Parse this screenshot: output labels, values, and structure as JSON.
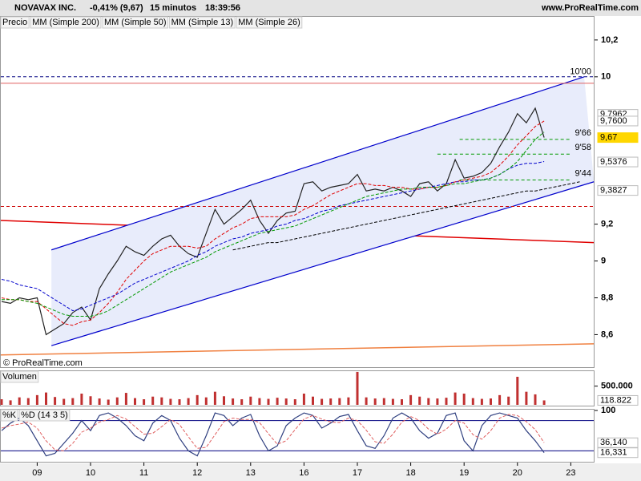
{
  "chart_data": [
    {
      "type": "line",
      "title": "NOVAVAX INC.",
      "subtitle": "-0,41% (9,67)",
      "interval": "15 minutos",
      "time": "18:39:56",
      "source": "www.ProRealTime.com",
      "copyright": "© ProRealTime.com",
      "categories": [
        null,
        null,
        null,
        null,
        "09",
        null,
        null,
        null,
        null,
        null,
        "10",
        null,
        null,
        null,
        null,
        null,
        "11",
        null,
        null,
        null,
        null,
        null,
        "12",
        null,
        null,
        null,
        null,
        null,
        "13",
        null,
        null,
        null,
        null,
        null,
        "16",
        null,
        null,
        null,
        null,
        null,
        "17",
        null,
        null,
        null,
        null,
        null,
        "18",
        null,
        null,
        null,
        null,
        null,
        "19",
        null,
        null,
        null,
        null,
        null,
        "20",
        null,
        null,
        null,
        null,
        null,
        "23",
        null
      ],
      "series": [
        {
          "name": "Precio",
          "color": "#222222",
          "values": [
            8.78,
            8.77,
            8.8,
            8.79,
            8.8,
            8.6,
            8.63,
            8.66,
            8.72,
            8.75,
            8.68,
            8.85,
            8.93,
            9.0,
            9.08,
            9.05,
            9.03,
            9.08,
            9.12,
            9.14,
            9.08,
            9.04,
            9.02,
            9.15,
            9.28,
            9.2,
            9.24,
            9.28,
            9.33,
            9.22,
            9.15,
            9.22,
            9.26,
            9.27,
            9.42,
            9.43,
            9.38,
            9.4,
            9.41,
            9.42,
            9.47,
            9.38,
            9.39,
            9.38,
            9.4,
            9.38,
            9.35,
            9.42,
            9.43,
            9.38,
            9.42,
            9.55,
            9.45,
            9.46,
            9.48,
            9.53,
            9.62,
            9.7,
            9.8,
            9.75,
            9.83,
            9.67,
            null,
            null,
            null,
            null
          ]
        },
        {
          "name": "MM (Simple 200)",
          "color": "#000000",
          "dash": true,
          "values": [
            null,
            null,
            null,
            null,
            null,
            null,
            null,
            null,
            null,
            null,
            null,
            null,
            null,
            null,
            null,
            null,
            null,
            null,
            null,
            null,
            null,
            null,
            null,
            null,
            null,
            null,
            9.06,
            9.07,
            9.08,
            9.09,
            9.1,
            9.1,
            9.11,
            9.12,
            9.13,
            9.14,
            9.15,
            9.16,
            9.17,
            9.18,
            9.19,
            9.2,
            9.21,
            9.22,
            9.23,
            9.24,
            9.25,
            9.26,
            9.27,
            9.28,
            9.29,
            9.3,
            9.31,
            9.32,
            9.33,
            9.34,
            9.35,
            9.36,
            9.37,
            9.38,
            9.38,
            9.39,
            9.4,
            9.41,
            9.42,
            9.43
          ]
        },
        {
          "name": "MM (Simple 50)",
          "color": "#0000cc",
          "dash": true,
          "values": [
            8.9,
            8.89,
            8.87,
            8.86,
            8.85,
            8.82,
            8.79,
            8.76,
            8.73,
            8.74,
            8.76,
            8.78,
            8.8,
            8.82,
            8.85,
            8.88,
            8.9,
            8.92,
            8.94,
            8.96,
            8.98,
            9.0,
            9.03,
            9.05,
            9.08,
            9.1,
            9.12,
            9.13,
            9.15,
            9.16,
            9.17,
            9.19,
            9.2,
            9.22,
            9.23,
            9.25,
            9.27,
            9.28,
            9.3,
            9.31,
            9.32,
            9.33,
            9.34,
            9.35,
            9.36,
            9.37,
            9.38,
            9.39,
            9.4,
            9.41,
            9.42,
            9.43,
            9.43,
            9.44,
            9.44,
            9.45,
            9.47,
            9.5,
            9.52,
            9.53,
            9.53,
            9.54,
            null,
            null,
            null,
            null
          ]
        },
        {
          "name": "MM (Simple 13)",
          "color": "#e00000",
          "dash": true,
          "values": [
            8.8,
            8.79,
            8.79,
            8.78,
            8.78,
            8.74,
            8.7,
            8.66,
            8.65,
            8.67,
            8.68,
            8.72,
            8.77,
            8.83,
            8.9,
            8.95,
            9.0,
            9.04,
            9.06,
            9.08,
            9.08,
            9.08,
            9.07,
            9.08,
            9.12,
            9.15,
            9.18,
            9.2,
            9.23,
            9.24,
            9.24,
            9.24,
            9.24,
            9.25,
            9.28,
            9.3,
            9.33,
            9.36,
            9.38,
            9.4,
            9.42,
            9.42,
            9.41,
            9.41,
            9.4,
            9.4,
            9.39,
            9.39,
            9.4,
            9.4,
            9.41,
            9.43,
            9.44,
            9.45,
            9.46,
            9.48,
            9.52,
            9.57,
            9.63,
            9.68,
            9.73,
            9.76,
            null,
            null,
            null,
            null
          ]
        },
        {
          "name": "MM (Simple 26)",
          "color": "#009900",
          "dash": true,
          "values": [
            8.79,
            8.79,
            8.79,
            8.78,
            8.77,
            8.75,
            8.73,
            8.71,
            8.7,
            8.7,
            8.7,
            8.71,
            8.73,
            8.76,
            8.79,
            8.82,
            8.85,
            8.88,
            8.91,
            8.94,
            8.96,
            8.98,
            9.0,
            9.02,
            9.05,
            9.07,
            9.09,
            9.11,
            9.13,
            9.15,
            9.16,
            9.17,
            9.18,
            9.19,
            9.21,
            9.23,
            9.25,
            9.27,
            9.29,
            9.31,
            9.33,
            9.35,
            9.36,
            9.37,
            9.38,
            9.39,
            9.39,
            9.4,
            9.4,
            9.4,
            9.41,
            9.42,
            9.42,
            9.43,
            9.44,
            9.45,
            9.47,
            9.5,
            9.54,
            9.6,
            9.66,
            9.7,
            null,
            null,
            null,
            null
          ]
        }
      ],
      "ylim": [
        8.48,
        10.33
      ],
      "yticks": [
        {
          "value": 8.6,
          "label": "8,6"
        },
        {
          "value": 8.8,
          "label": "8,8"
        },
        9,
        {
          "value": 9.2,
          "label": "9,2"
        },
        10,
        {
          "value": 10.2,
          "label": "10,2"
        }
      ],
      "channel": {
        "color": "#0000cc",
        "fill": "#e8ecfb",
        "upper": [
          9.06,
          10.0
        ],
        "lower": [
          8.54,
          9.43
        ]
      },
      "trendlines": [
        {
          "color": "#e00000",
          "values": [
            9.22,
            9.1
          ]
        },
        {
          "color": "#f08040",
          "values": [
            8.49,
            8.55
          ]
        }
      ],
      "hlines": [
        {
          "value": 10.0,
          "label": "10'00",
          "color": "#000080",
          "dash": true
        },
        {
          "value": 9.965,
          "color": "#e06060"
        },
        {
          "value": 9.296,
          "color": "#cc0000",
          "dash": true
        }
      ],
      "levels": [
        {
          "value": 9.66,
          "label": "9'66"
        },
        {
          "value": 9.58,
          "label": "9'58"
        },
        {
          "value": 9.44,
          "label": "9'44"
        }
      ],
      "level_color": "#009900",
      "markers": [
        {
          "value": 9.7962,
          "label": "9,7962",
          "color": "#e00000",
          "background": "#ffffff"
        },
        {
          "value": 9.76,
          "label": "9,7600",
          "color": "#009900",
          "background": "#ffffff"
        },
        {
          "value": 9.67,
          "label": "9,67",
          "color": "#000000",
          "background": "#ffd700"
        },
        {
          "value": 9.5376,
          "label": "9,5376",
          "color": "#0000cc",
          "background": "#ffffff"
        },
        {
          "value": 9.3827,
          "label": "9,3827",
          "color": "#000000",
          "background": "#ffffff"
        }
      ]
    },
    {
      "type": "bar",
      "title": "Volumen",
      "color": "#c03030",
      "values": [
        150000,
        120000,
        200000,
        180000,
        260000,
        330000,
        210000,
        160000,
        180000,
        300000,
        230000,
        170000,
        140000,
        200000,
        320000,
        180000,
        150000,
        220000,
        200000,
        160000,
        150000,
        180000,
        260000,
        200000,
        350000,
        230000,
        170000,
        150000,
        220000,
        180000,
        160000,
        190000,
        170000,
        150000,
        300000,
        220000,
        160000,
        170000,
        180000,
        200000,
        880000,
        200000,
        170000,
        180000,
        160000,
        150000,
        260000,
        220000,
        180000,
        170000,
        190000,
        330000,
        300000,
        180000,
        160000,
        170000,
        260000,
        220000,
        750000,
        350000,
        280000,
        118822,
        null,
        null,
        null,
        null
      ],
      "ylim": [
        0,
        900000
      ],
      "yticks": [
        {
          "value": 500000,
          "label": "500.000"
        }
      ],
      "markers": [
        {
          "value": 118822,
          "label": "118.822",
          "color": "#c03030",
          "background": "#ffffff"
        }
      ]
    },
    {
      "type": "line",
      "series": [
        {
          "name": "%K",
          "color": "#304080",
          "values": [
            60,
            75,
            85,
            70,
            40,
            10,
            15,
            35,
            55,
            80,
            60,
            90,
            95,
            85,
            70,
            50,
            40,
            75,
            90,
            80,
            45,
            20,
            10,
            50,
            95,
            90,
            70,
            85,
            92,
            50,
            20,
            30,
            70,
            85,
            95,
            90,
            65,
            75,
            88,
            92,
            60,
            30,
            25,
            50,
            85,
            95,
            85,
            60,
            45,
            55,
            90,
            95,
            40,
            20,
            70,
            90,
            95,
            90,
            85,
            60,
            40,
            16.331,
            null,
            null,
            null,
            null
          ]
        },
        {
          "name": "%D (14 3 5)",
          "color": "#e06060",
          "dash": true,
          "values": [
            65,
            70,
            73,
            77,
            65,
            40,
            22,
            20,
            35,
            57,
            65,
            77,
            82,
            90,
            83,
            68,
            53,
            55,
            68,
            82,
            72,
            48,
            25,
            27,
            52,
            78,
            85,
            82,
            82,
            76,
            54,
            33,
            40,
            62,
            83,
            90,
            83,
            77,
            76,
            85,
            80,
            61,
            38,
            35,
            53,
            77,
            88,
            80,
            63,
            53,
            63,
            80,
            75,
            52,
            43,
            60,
            85,
            92,
            90,
            78,
            62,
            36.14,
            null,
            null,
            null,
            null
          ]
        }
      ],
      "ylim": [
        0,
        100
      ],
      "yticks": [
        100
      ],
      "levels": [
        {
          "value": 20
        },
        {
          "value": 80
        }
      ],
      "level_color": "#000080",
      "markers": [
        {
          "value": 36.14,
          "label": "36,140",
          "color": "#e06060",
          "background": "#ffffff"
        },
        {
          "value": 16.331,
          "label": "16,331",
          "color": "#000000",
          "background": "#ffffff"
        }
      ]
    }
  ]
}
